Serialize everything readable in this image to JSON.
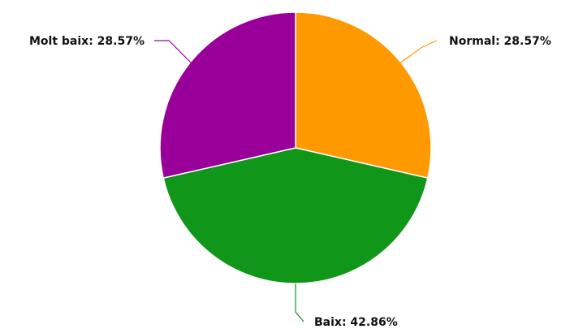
{
  "chart_data": {
    "type": "pie",
    "title": "",
    "slices": [
      {
        "label": "Normal",
        "value": 28.57,
        "display": "Normal: 28.57%",
        "color": "#FF9900"
      },
      {
        "label": "Baix",
        "value": 42.86,
        "display": "Baix: 42.86%",
        "color": "#109618"
      },
      {
        "label": "Molt baix",
        "value": 28.57,
        "display": "Molt baix: 28.57%",
        "color": "#990099"
      }
    ],
    "unit": "%",
    "legend": "none",
    "labels": "outside-with-connectors"
  }
}
